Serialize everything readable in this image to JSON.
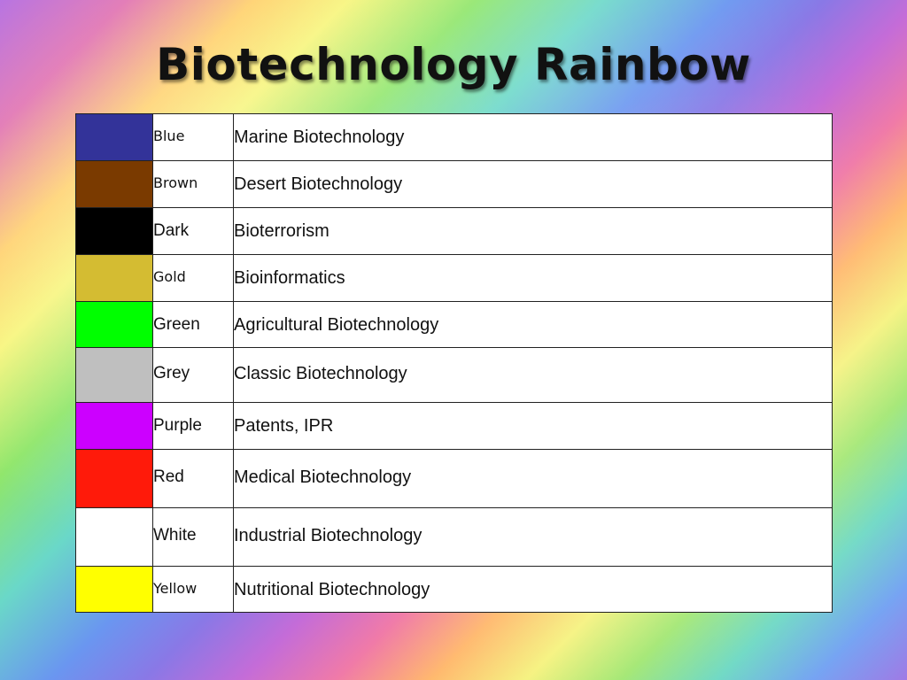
{
  "slide": {
    "title": "Biotechnology Rainbow"
  },
  "rows": [
    {
      "color_name": "Blue",
      "swatch": "#333399",
      "field": "Marine Biotechnology"
    },
    {
      "color_name": "Brown",
      "swatch": "#7a3a00",
      "field": "Desert Biotechnology"
    },
    {
      "color_name": "Dark",
      "swatch": "#000000",
      "field": "Bioterrorism"
    },
    {
      "color_name": "Gold",
      "swatch": "#d4bc32",
      "field": "Bioinformatics"
    },
    {
      "color_name": "Green",
      "swatch": "#00ff00",
      "field": "Agricultural Biotechnology"
    },
    {
      "color_name": "Grey",
      "swatch": "#bfbfbf",
      "field": "Classic Biotechnology"
    },
    {
      "color_name": "Purple",
      "swatch": "#cc00ff",
      "field": "Patents, IPR"
    },
    {
      "color_name": "Red",
      "swatch": "#ff1a0a",
      "field": "Medical Biotechnology"
    },
    {
      "color_name": "White",
      "swatch": "#ffffff",
      "field": "Industrial Biotechnology"
    },
    {
      "color_name": "Yellow",
      "swatch": "#ffff00",
      "field": "Nutritional Biotechnology"
    }
  ]
}
